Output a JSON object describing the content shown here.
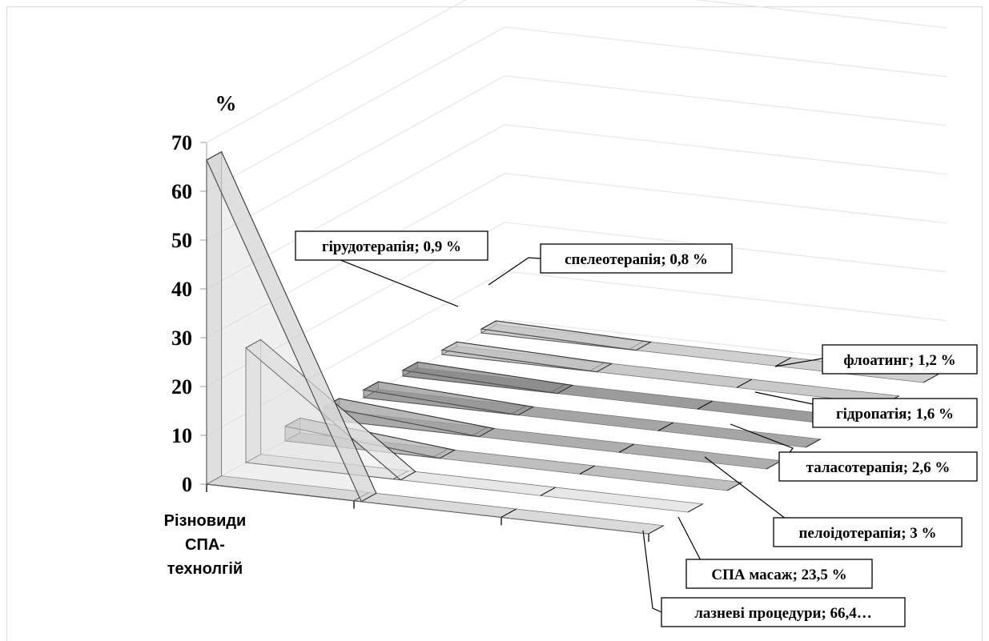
{
  "chart_data": {
    "type": "area",
    "title": "",
    "ylabel": "%",
    "xlabel_lines": [
      "Різновиди",
      "СПА-",
      "технолгій"
    ],
    "ylim": [
      0,
      70
    ],
    "yticks": [
      "0",
      "10",
      "20",
      "30",
      "40",
      "50",
      "60",
      "70"
    ],
    "grid": true,
    "series": [
      {
        "name": "лазневі процедури",
        "value": 66.4,
        "label": "лазневі процедури; 66,4…",
        "color": "#d4d4d4"
      },
      {
        "name": "СПА масаж",
        "value": 23.5,
        "label": "СПА масаж; 23,5 %",
        "color": "#e3e3e3"
      },
      {
        "name": "пелоідотерапія",
        "value": 3,
        "label": "пелоідотерапія; 3 %",
        "color": "#b4b4b4"
      },
      {
        "name": "таласотерапія",
        "value": 2.6,
        "label": "таласотерапія; 2,6 %",
        "color": "#a0a0a0"
      },
      {
        "name": "гідропатія",
        "value": 1.6,
        "label": "гідропатія; 1,6 %",
        "color": "#959595"
      },
      {
        "name": "флоатинг",
        "value": 1.2,
        "label": "флоатинг; 1,2 %",
        "color": "#8a8a8a"
      },
      {
        "name": "гірудотерапія",
        "value": 0.9,
        "label": "гірудотерапія; 0,9 %",
        "color": "#c0c0c0"
      },
      {
        "name": "спелеотерапія",
        "value": 0.8,
        "label": "спелеотерапія; 0,8 %",
        "color": "#c8c8c8"
      }
    ]
  }
}
